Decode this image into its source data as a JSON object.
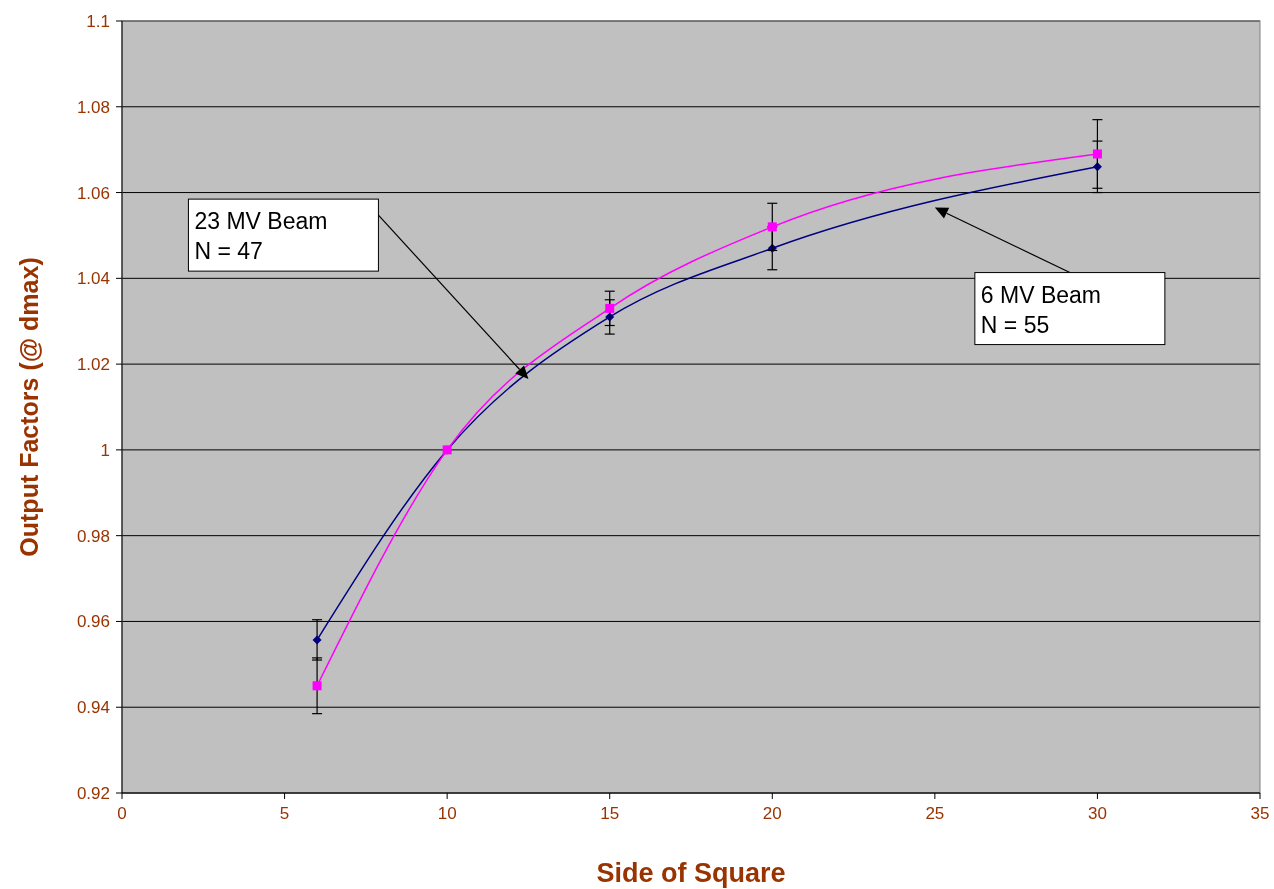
{
  "chart_data": {
    "type": "line",
    "xlabel": "Side of Square",
    "ylabel": "Output Factors (@ dmax)",
    "x": [
      6,
      10,
      15,
      20,
      30
    ],
    "series": [
      {
        "color": "#000080",
        "marker": "diamond",
        "values": [
          0.9557,
          1.0,
          1.031,
          1.047,
          1.066
        ],
        "errors": [
          0.0047,
          null,
          0.004,
          0.005,
          0.006
        ]
      },
      {
        "color": "#ff00ff",
        "marker": "square",
        "values": [
          0.945,
          1.0,
          1.033,
          1.052,
          1.069
        ],
        "errors": [
          0.0065,
          null,
          0.004,
          0.0055,
          0.008
        ]
      }
    ],
    "xlim": [
      0,
      35
    ],
    "xticks": [
      0,
      5,
      10,
      15,
      20,
      25,
      30,
      35
    ],
    "ylim": [
      0.92,
      1.1
    ],
    "yticks": [
      0.92,
      0.94,
      0.96,
      0.98,
      1,
      1.02,
      1.04,
      1.06,
      1.08,
      {
        "value": 1.1,
        "label": "1.1"
      }
    ],
    "grid": "y",
    "line_style": "solid",
    "annotations": [
      "23 MV Beam\nN = 47",
      "6 MV Beam\nN = 55"
    ]
  }
}
